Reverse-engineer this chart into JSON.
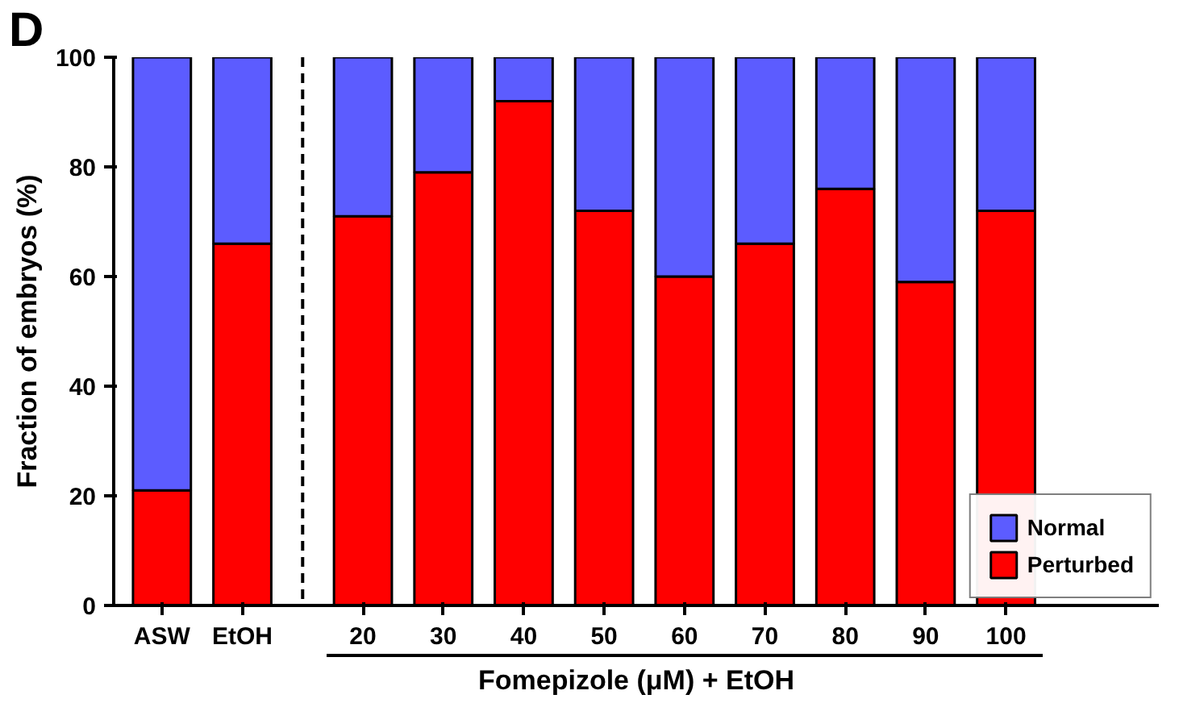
{
  "chart_data": {
    "type": "bar",
    "stacked": true,
    "categories": [
      "ASW",
      "EtOH",
      null,
      "20",
      "30",
      "40",
      "50",
      "60",
      "70",
      "80",
      "90",
      "100"
    ],
    "series": [
      {
        "name": "Perturbed",
        "color": "#ff0000",
        "values": [
          21,
          66,
          null,
          71,
          79,
          92,
          72,
          60,
          66,
          76,
          59,
          72
        ]
      },
      {
        "name": "Normal",
        "color": "#5c5cff",
        "values": [
          79,
          34,
          null,
          29,
          21,
          8,
          28,
          40,
          34,
          24,
          41,
          28
        ]
      }
    ],
    "ylabel": "Fraction of embryos (%)",
    "xlabel": "Fomepizole (μM) + EtOH",
    "ylim": [
      0,
      100
    ],
    "yticks": [
      0,
      20,
      40,
      60,
      80,
      100
    ],
    "legend": "bottom right",
    "annotations": [
      "D"
    ]
  }
}
